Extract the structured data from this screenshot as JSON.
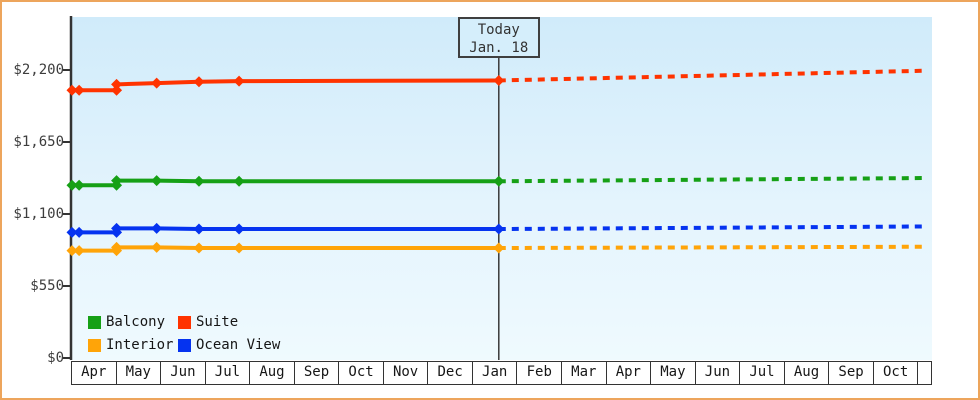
{
  "page": {
    "border_color": "#eda55c",
    "background": "#ffffff",
    "plot_bg_top": "#d0ebfa",
    "plot_bg_bottom": "#effafe",
    "axis_color": "#333333"
  },
  "chart_data": {
    "type": "line",
    "title": "",
    "x_unit": "month index from first Apr (0 = Apr 1)",
    "x_months": [
      "Apr",
      "May",
      "Jun",
      "Jul",
      "Aug",
      "Sep",
      "Oct",
      "Nov",
      "Dec",
      "Jan",
      "Feb",
      "Mar",
      "Apr",
      "May",
      "Jun",
      "Jul",
      "Aug",
      "Sep",
      "Oct"
    ],
    "y_ticks": [
      {
        "label": "$0",
        "value": 0
      },
      {
        "label": "$550",
        "value": 550
      },
      {
        "label": "$1,100",
        "value": 1100
      },
      {
        "label": "$1,650",
        "value": 1650
      },
      {
        "label": "$2,200",
        "value": 2200
      }
    ],
    "ylim": [
      0,
      2600
    ],
    "grid": "off",
    "today": {
      "line1": "Today",
      "line2": "Jan. 18",
      "month_offset": 9.58
    },
    "series": [
      {
        "name": "Suite",
        "color": "#ff3300",
        "solid_points": [
          [
            0,
            2045
          ],
          [
            0.16,
            2045
          ],
          [
            1,
            2045
          ],
          [
            1,
            2090
          ],
          [
            1.9,
            2100
          ],
          [
            2.85,
            2110
          ],
          [
            3.75,
            2115
          ],
          [
            9.58,
            2120
          ]
        ],
        "dashed_points": [
          [
            9.58,
            2120
          ],
          [
            19.2,
            2195
          ]
        ]
      },
      {
        "name": "Balcony",
        "color": "#16a016",
        "solid_points": [
          [
            0,
            1320
          ],
          [
            0.16,
            1320
          ],
          [
            1,
            1320
          ],
          [
            1,
            1355
          ],
          [
            1.9,
            1355
          ],
          [
            2.85,
            1350
          ],
          [
            3.75,
            1350
          ],
          [
            9.58,
            1350
          ]
        ],
        "dashed_points": [
          [
            9.58,
            1350
          ],
          [
            19.2,
            1375
          ]
        ]
      },
      {
        "name": "Ocean View",
        "color": "#0533f0",
        "solid_points": [
          [
            0,
            960
          ],
          [
            0.16,
            960
          ],
          [
            1,
            960
          ],
          [
            1,
            990
          ],
          [
            1.9,
            990
          ],
          [
            2.85,
            985
          ],
          [
            3.75,
            985
          ],
          [
            9.58,
            985
          ]
        ],
        "dashed_points": [
          [
            9.58,
            985
          ],
          [
            19.2,
            1005
          ]
        ]
      },
      {
        "name": "Interior",
        "color": "#ffa408",
        "solid_points": [
          [
            0,
            820
          ],
          [
            0.16,
            820
          ],
          [
            1,
            820
          ],
          [
            1,
            845
          ],
          [
            1.9,
            845
          ],
          [
            2.85,
            840
          ],
          [
            3.75,
            840
          ],
          [
            9.58,
            840
          ]
        ],
        "dashed_points": [
          [
            9.58,
            840
          ],
          [
            19.2,
            850
          ]
        ]
      }
    ],
    "legend": {
      "position": "bottom-left inside plot",
      "items": [
        {
          "label": "Balcony",
          "color": "#16a016"
        },
        {
          "label": "Suite",
          "color": "#ff3300"
        },
        {
          "label": "Interior",
          "color": "#ffa408"
        },
        {
          "label": "Ocean View",
          "color": "#0533f0"
        }
      ]
    }
  }
}
